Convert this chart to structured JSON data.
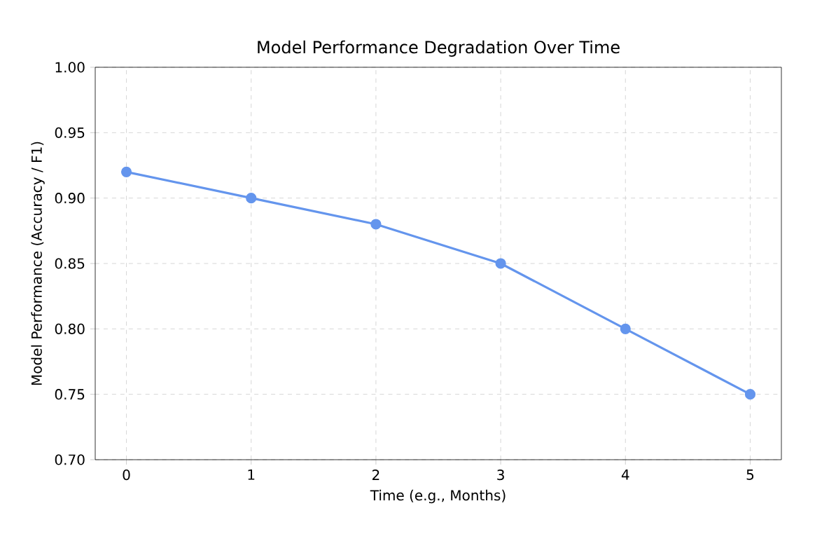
{
  "chart_data": {
    "type": "line",
    "title": "Model Performance Degradation Over Time",
    "xlabel": "Time (e.g., Months)",
    "ylabel": "Model Performance (Accuracy / F1)",
    "x": [
      0,
      1,
      2,
      3,
      4,
      5
    ],
    "series": [
      {
        "color": "#6495ed",
        "values": [
          0.92,
          0.9,
          0.88,
          0.85,
          0.8,
          0.75
        ]
      }
    ],
    "xlim": [
      -0.25,
      5.25
    ],
    "xticks": [
      0,
      1,
      2,
      3,
      4,
      5
    ],
    "ylim": [
      0.7,
      1.0
    ],
    "yticks": [
      {
        "value": 0.7,
        "label": "0.70"
      },
      {
        "value": 0.75,
        "label": "0.75"
      },
      {
        "value": 0.8,
        "label": "0.80"
      },
      {
        "value": 0.85,
        "label": "0.85"
      },
      {
        "value": 0.9,
        "label": "0.90"
      },
      {
        "value": 0.95,
        "label": "0.95"
      },
      {
        "value": 1.0,
        "label": "1.00"
      }
    ],
    "grid": true,
    "marker": "circle",
    "line_style": "solid"
  }
}
